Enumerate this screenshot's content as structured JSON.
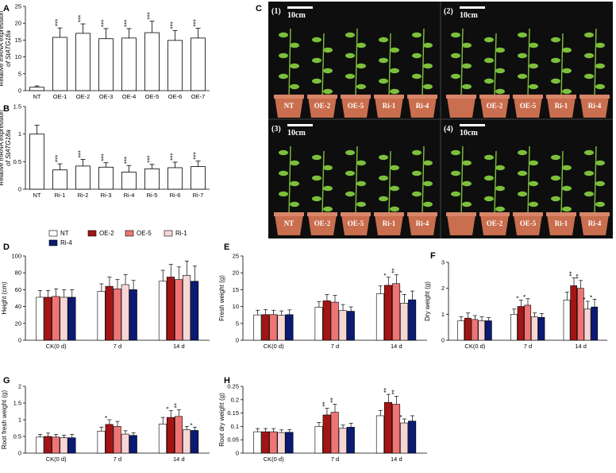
{
  "colors": {
    "NT": "#ffffff",
    "OE-2": "#a31515",
    "OE-5": "#ee7575",
    "Ri-1": "#f7d6d6",
    "Ri-4": "#0b1a73",
    "photo_bg": "#0e0e0e",
    "pot": "#c96e4e",
    "plant": "#7cbf3c"
  },
  "legend": {
    "entries": [
      "NT",
      "OE-2",
      "OE-5",
      "Ri-1",
      "Ri-4"
    ]
  },
  "photos": {
    "panel_letter": "C",
    "scale_bar": "10cm",
    "quadrants": [
      {
        "label": "(1)",
        "pots": [
          "NT",
          "OE-2",
          "OE-5",
          "Ri-1",
          "Ri-4"
        ]
      },
      {
        "label": "(2)",
        "pots": [
          "OE-2",
          "OE-5",
          "Ri-1",
          "Ri-4"
        ]
      },
      {
        "label": "(3)",
        "pots": [
          "NT",
          "OE-2",
          "OE-5",
          "Ri-1",
          "Ri-4"
        ]
      },
      {
        "label": "(4)",
        "pots": [
          "OE-2",
          "OE-5",
          "Ri-1",
          "Ri-4"
        ]
      }
    ]
  },
  "chart_data": [
    {
      "id": "A",
      "type": "bar",
      "ylabel": "Relative mRNA expression of StATG18a",
      "categories": [
        "NT",
        "OE-1",
        "OE-2",
        "OE-3",
        "OE-4",
        "OE-5",
        "OE-6",
        "OE-7"
      ],
      "values": [
        1,
        15.8,
        17.0,
        15.4,
        15.6,
        17.2,
        14.9,
        15.6
      ],
      "errors": [
        0.4,
        2.8,
        2.8,
        3.0,
        2.8,
        3.4,
        2.9,
        2.9
      ],
      "stars": [
        "",
        "***",
        "***",
        "***",
        "***",
        "***",
        "***",
        "***"
      ],
      "yticks": [
        0,
        5,
        10,
        15,
        20,
        25
      ],
      "ylim": [
        0,
        25
      ]
    },
    {
      "id": "B",
      "type": "bar",
      "ylabel": "Relative mRNA expression of StATG18a",
      "categories": [
        "NT",
        "Ri-1",
        "Ri-2",
        "Ri-3",
        "Ri-4",
        "Ri-5",
        "Ri-6",
        "Ri-7"
      ],
      "values": [
        1.0,
        0.35,
        0.42,
        0.4,
        0.31,
        0.37,
        0.39,
        0.41
      ],
      "errors": [
        0.16,
        0.11,
        0.12,
        0.08,
        0.12,
        0.08,
        0.1,
        0.1
      ],
      "stars": [
        "",
        "***",
        "***",
        "***",
        "***",
        "***",
        "***",
        "***"
      ],
      "yticks": [
        0.0,
        0.5,
        1.0,
        1.5
      ],
      "ylim": [
        0,
        1.5
      ]
    },
    {
      "id": "D",
      "type": "bar",
      "ylabel": "Height (cm)",
      "categories": [
        "CK(0 d)",
        "7 d",
        "14 d"
      ],
      "series": [
        {
          "name": "NT",
          "values": [
            51,
            58,
            70
          ],
          "errors": [
            8,
            9,
            13
          ],
          "stars": [
            "",
            "",
            ""
          ]
        },
        {
          "name": "OE-2",
          "values": [
            51,
            64,
            75
          ],
          "errors": [
            8,
            11,
            15
          ],
          "stars": [
            "",
            "",
            ""
          ]
        },
        {
          "name": "OE-5",
          "values": [
            52,
            61,
            72
          ],
          "errors": [
            9,
            11,
            15
          ],
          "stars": [
            "",
            "",
            ""
          ]
        },
        {
          "name": "Ri-1",
          "values": [
            51,
            66,
            77
          ],
          "errors": [
            9,
            12,
            17
          ],
          "stars": [
            "",
            "",
            ""
          ]
        },
        {
          "name": "Ri-4",
          "values": [
            51,
            60,
            70
          ],
          "errors": [
            9,
            11,
            18
          ],
          "stars": [
            "",
            "",
            ""
          ]
        }
      ],
      "yticks": [
        0,
        20,
        40,
        60,
        80,
        100
      ],
      "ylim": [
        0,
        100
      ]
    },
    {
      "id": "E",
      "type": "bar",
      "ylabel": "Fresh weight (g)",
      "categories": [
        "CK(0 d)",
        "7 d",
        "14 d"
      ],
      "series": [
        {
          "name": "NT",
          "values": [
            7.5,
            9.8,
            13.8
          ],
          "errors": [
            1.4,
            1.6,
            2.3
          ],
          "stars": [
            "",
            "",
            ""
          ]
        },
        {
          "name": "OE-2",
          "values": [
            7.6,
            11.7,
            16.3
          ],
          "errors": [
            1.5,
            1.9,
            2.4
          ],
          "stars": [
            "",
            "",
            "*"
          ]
        },
        {
          "name": "OE-5",
          "values": [
            7.6,
            11.3,
            16.8
          ],
          "errors": [
            1.3,
            2.0,
            2.6
          ],
          "stars": [
            "",
            "",
            "**"
          ]
        },
        {
          "name": "Ri-1",
          "values": [
            7.4,
            8.8,
            11.0
          ],
          "errors": [
            1.3,
            1.8,
            2.6
          ],
          "stars": [
            "",
            "",
            "*"
          ]
        },
        {
          "name": "Ri-4",
          "values": [
            7.6,
            8.6,
            12.0
          ],
          "errors": [
            1.4,
            1.3,
            2.6
          ],
          "stars": [
            "",
            "",
            ""
          ]
        }
      ],
      "yticks": [
        0,
        5,
        10,
        15,
        20,
        25
      ],
      "ylim": [
        0,
        25
      ]
    },
    {
      "id": "F",
      "type": "bar",
      "ylabel": "Dry weight (g)",
      "categories": [
        "CK(0 d)",
        "7 d",
        "14 d"
      ],
      "series": [
        {
          "name": "NT",
          "values": [
            0.75,
            1.0,
            1.55
          ],
          "errors": [
            0.15,
            0.2,
            0.3
          ],
          "stars": [
            "",
            "",
            ""
          ]
        },
        {
          "name": "OE-2",
          "values": [
            0.85,
            1.3,
            2.1
          ],
          "errors": [
            0.2,
            0.25,
            0.3
          ],
          "stars": [
            "",
            "*",
            "**"
          ]
        },
        {
          "name": "OE-5",
          "values": [
            0.8,
            1.35,
            2.0
          ],
          "errors": [
            0.15,
            0.25,
            0.3
          ],
          "stars": [
            "",
            "*",
            "**"
          ]
        },
        {
          "name": "Ri-1",
          "values": [
            0.75,
            0.9,
            1.2
          ],
          "errors": [
            0.15,
            0.15,
            0.3
          ],
          "stars": [
            "",
            "",
            "*"
          ]
        },
        {
          "name": "Ri-4",
          "values": [
            0.75,
            0.88,
            1.28
          ],
          "errors": [
            0.12,
            0.15,
            0.3
          ],
          "stars": [
            "",
            "",
            "*"
          ]
        }
      ],
      "yticks": [
        0,
        1,
        2,
        3
      ],
      "ylim": [
        0,
        3
      ]
    },
    {
      "id": "G",
      "type": "bar",
      "ylabel": "Root fresh weight (g)",
      "categories": [
        "CK(0 d)",
        "7 d",
        "14 d"
      ],
      "series": [
        {
          "name": "NT",
          "values": [
            0.48,
            0.66,
            0.87
          ],
          "errors": [
            0.08,
            0.12,
            0.2
          ],
          "stars": [
            "",
            "",
            ""
          ]
        },
        {
          "name": "OE-2",
          "values": [
            0.5,
            0.86,
            1.07
          ],
          "errors": [
            0.1,
            0.14,
            0.2
          ],
          "stars": [
            "",
            "*",
            "*"
          ]
        },
        {
          "name": "OE-5",
          "values": [
            0.48,
            0.8,
            1.1
          ],
          "errors": [
            0.08,
            0.15,
            0.2
          ],
          "stars": [
            "",
            "",
            "**"
          ]
        },
        {
          "name": "Ri-1",
          "values": [
            0.46,
            0.57,
            0.7
          ],
          "errors": [
            0.08,
            0.1,
            0.1
          ],
          "stars": [
            "",
            "",
            ""
          ]
        },
        {
          "name": "Ri-4",
          "values": [
            0.46,
            0.53,
            0.68
          ],
          "errors": [
            0.1,
            0.08,
            0.1
          ],
          "stars": [
            "",
            "",
            "*"
          ]
        }
      ],
      "yticks": [
        0.0,
        0.5,
        1.0,
        1.5,
        2.0
      ],
      "ylim": [
        0,
        2.0
      ]
    },
    {
      "id": "H",
      "type": "bar",
      "ylabel": "Root dry weight (g)",
      "categories": [
        "CK(0 d)",
        "7 d",
        "14 d"
      ],
      "series": [
        {
          "name": "NT",
          "values": [
            0.08,
            0.1,
            0.14
          ],
          "errors": [
            0.012,
            0.015,
            0.02
          ],
          "stars": [
            "",
            "",
            ""
          ]
        },
        {
          "name": "OE-2",
          "values": [
            0.08,
            0.143,
            0.19
          ],
          "errors": [
            0.012,
            0.025,
            0.03
          ],
          "stars": [
            "",
            "**",
            "**"
          ]
        },
        {
          "name": "OE-5",
          "values": [
            0.08,
            0.153,
            0.183
          ],
          "errors": [
            0.012,
            0.03,
            0.03
          ],
          "stars": [
            "",
            "**",
            "**"
          ]
        },
        {
          "name": "Ri-1",
          "values": [
            0.077,
            0.093,
            0.113
          ],
          "errors": [
            0.01,
            0.012,
            0.015
          ],
          "stars": [
            "",
            "",
            "*"
          ]
        },
        {
          "name": "Ri-4",
          "values": [
            0.078,
            0.097,
            0.12
          ],
          "errors": [
            0.01,
            0.015,
            0.02
          ],
          "stars": [
            "",
            "",
            ""
          ]
        }
      ],
      "yticks": [
        0.0,
        0.05,
        0.1,
        0.15,
        0.2,
        0.25
      ],
      "ylim": [
        0,
        0.25
      ]
    }
  ]
}
